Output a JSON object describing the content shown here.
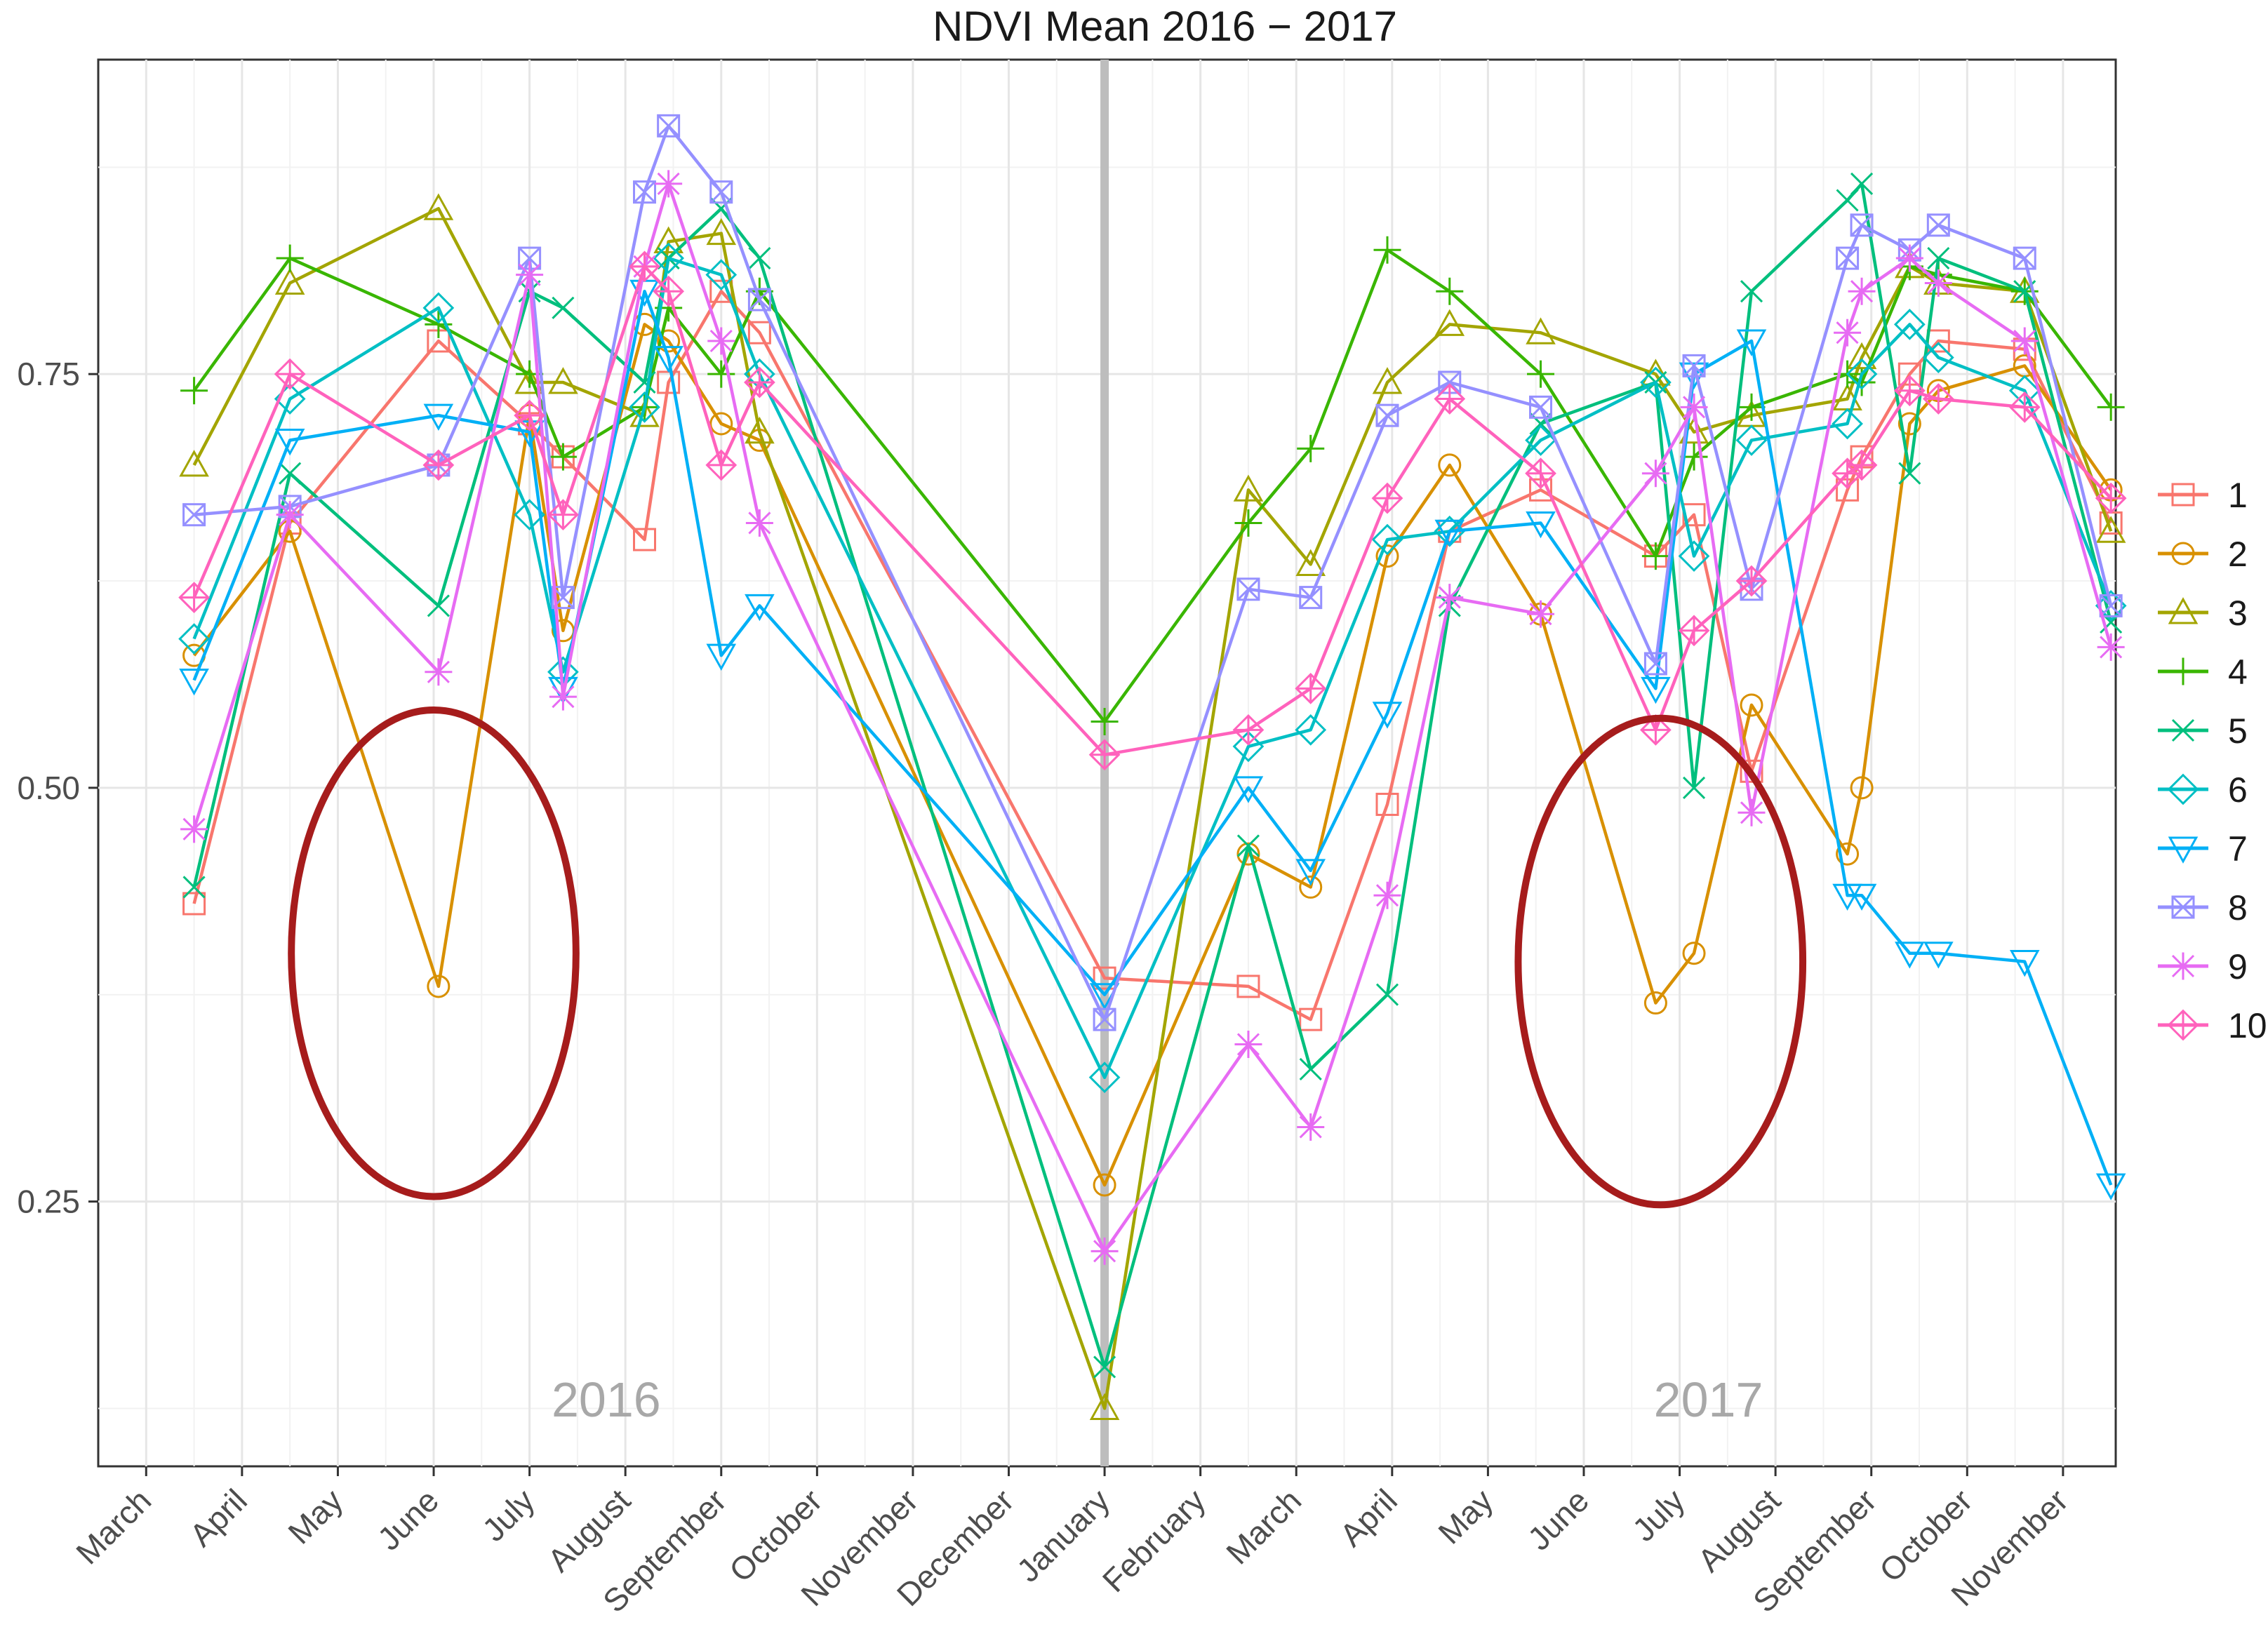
{
  "chart_data": {
    "type": "line",
    "title": "NDVI Mean 2016 − 2017",
    "xlabel": "",
    "ylabel": "",
    "ylim": [
      0.09,
      0.94
    ],
    "xlim": [
      -0.5,
      20.55
    ],
    "y_ticks": [
      {
        "value": 0.25,
        "label": "0.25"
      },
      {
        "value": 0.5,
        "label": "0.50"
      },
      {
        "value": 0.75,
        "label": "0.75"
      }
    ],
    "minor_y_gridlines": [
      0.125,
      0.375,
      0.625,
      0.875
    ],
    "x_ticks": [
      {
        "value": 0,
        "label": "March"
      },
      {
        "value": 1,
        "label": "April"
      },
      {
        "value": 2,
        "label": "May"
      },
      {
        "value": 3,
        "label": "June"
      },
      {
        "value": 4,
        "label": "July"
      },
      {
        "value": 5,
        "label": "August"
      },
      {
        "value": 6,
        "label": "September"
      },
      {
        "value": 7,
        "label": "October"
      },
      {
        "value": 8,
        "label": "November"
      },
      {
        "value": 9,
        "label": "December"
      },
      {
        "value": 10,
        "label": "January"
      },
      {
        "value": 11,
        "label": "February"
      },
      {
        "value": 12,
        "label": "March"
      },
      {
        "value": 13,
        "label": "April"
      },
      {
        "value": 14,
        "label": "May"
      },
      {
        "value": 15,
        "label": "June"
      },
      {
        "value": 16,
        "label": "July"
      },
      {
        "value": 17,
        "label": "August"
      },
      {
        "value": 18,
        "label": "September"
      },
      {
        "value": 19,
        "label": "October"
      },
      {
        "value": 20,
        "label": "November"
      }
    ],
    "separator": {
      "x": 10,
      "color": "#bdbdbd"
    },
    "year_labels": [
      {
        "x": 4.8,
        "y": 0.12,
        "text": "2016"
      },
      {
        "x": 16.3,
        "y": 0.12,
        "text": "2017"
      }
    ],
    "highlight_circles": [
      {
        "cx": 3.0,
        "cy": 0.4,
        "rx": 1.1,
        "ry": 0.06,
        "color": "#a61c1c"
      },
      {
        "cx": 15.8,
        "cy": 0.395,
        "rx": 1.1,
        "ry": 0.06,
        "color": "#a61c1c"
      }
    ],
    "legend": {
      "position": "right",
      "title": ""
    },
    "x": [
      0.5,
      1.5,
      3.05,
      4.0,
      4.35,
      5.2,
      5.45,
      6.0,
      6.4,
      10.0,
      11.5,
      12.15,
      12.95,
      13.6,
      14.55,
      15.75,
      16.15,
      16.75,
      17.75,
      17.9,
      18.4,
      18.7,
      19.6,
      20.5
    ],
    "series": [
      {
        "name": "1",
        "shape": "square",
        "color": "#f8766d",
        "values": [
          0.43,
          0.66,
          0.77,
          0.72,
          0.7,
          0.65,
          0.745,
          0.8,
          0.775,
          0.385,
          0.38,
          0.36,
          0.49,
          0.655,
          0.68,
          0.64,
          0.665,
          0.51,
          0.68,
          0.7,
          0.75,
          0.77,
          0.765,
          0.66
        ]
      },
      {
        "name": "2",
        "shape": "circle",
        "color": "#d89000",
        "values": [
          0.58,
          0.655,
          0.38,
          0.725,
          0.595,
          0.78,
          0.77,
          0.72,
          0.71,
          0.26,
          0.46,
          0.44,
          0.64,
          0.695,
          0.605,
          0.37,
          0.4,
          0.55,
          0.46,
          0.5,
          0.72,
          0.74,
          0.755,
          0.68
        ]
      },
      {
        "name": "3",
        "shape": "triangle-up",
        "color": "#a3a500",
        "values": [
          0.695,
          0.805,
          0.85,
          0.745,
          0.745,
          0.725,
          0.83,
          0.835,
          0.715,
          0.125,
          0.68,
          0.635,
          0.745,
          0.78,
          0.775,
          0.75,
          0.715,
          0.725,
          0.735,
          0.76,
          0.815,
          0.805,
          0.8,
          0.655
        ]
      },
      {
        "name": "4",
        "shape": "plus",
        "color": "#39b600",
        "values": [
          0.74,
          0.82,
          0.78,
          0.75,
          0.7,
          0.73,
          0.79,
          0.75,
          0.8,
          0.54,
          0.66,
          0.705,
          0.825,
          0.8,
          0.75,
          0.64,
          0.7,
          0.73,
          0.75,
          0.745,
          0.815,
          0.81,
          0.8,
          0.73
        ]
      },
      {
        "name": "5",
        "shape": "cross",
        "color": "#00bf7d",
        "values": [
          0.44,
          0.69,
          0.61,
          0.8,
          0.79,
          0.745,
          0.82,
          0.85,
          0.82,
          0.15,
          0.465,
          0.33,
          0.375,
          0.61,
          0.72,
          0.745,
          0.5,
          0.8,
          0.855,
          0.865,
          0.69,
          0.82,
          0.8,
          0.6
        ]
      },
      {
        "name": "6",
        "shape": "diamond",
        "color": "#00bfc4",
        "values": [
          0.59,
          0.735,
          0.79,
          0.665,
          0.57,
          0.73,
          0.82,
          0.81,
          0.75,
          0.325,
          0.525,
          0.535,
          0.65,
          0.655,
          0.71,
          0.745,
          0.64,
          0.71,
          0.72,
          0.75,
          0.78,
          0.76,
          0.74,
          0.61
        ]
      },
      {
        "name": "7",
        "shape": "triangle-down",
        "color": "#00b0f6",
        "values": [
          0.565,
          0.71,
          0.725,
          0.715,
          0.56,
          0.8,
          0.76,
          0.58,
          0.61,
          0.375,
          0.5,
          0.45,
          0.545,
          0.655,
          0.66,
          0.56,
          0.75,
          0.77,
          0.435,
          0.435,
          0.4,
          0.4,
          0.395,
          0.26
        ]
      },
      {
        "name": "8",
        "shape": "square-cross",
        "color": "#9590ff",
        "values": [
          0.665,
          0.67,
          0.695,
          0.82,
          0.615,
          0.86,
          0.9,
          0.86,
          0.795,
          0.36,
          0.62,
          0.615,
          0.725,
          0.745,
          0.73,
          0.575,
          0.755,
          0.62,
          0.82,
          0.84,
          0.825,
          0.84,
          0.82,
          0.61
        ]
      },
      {
        "name": "9",
        "shape": "asterisk",
        "color": "#e76bf3",
        "values": [
          0.475,
          0.665,
          0.57,
          0.81,
          0.555,
          0.815,
          0.865,
          0.77,
          0.66,
          0.22,
          0.345,
          0.295,
          0.435,
          0.615,
          0.605,
          0.69,
          0.73,
          0.485,
          0.775,
          0.8,
          0.82,
          0.805,
          0.77,
          0.585
        ]
      },
      {
        "name": "10",
        "shape": "diamond-plus",
        "color": "#ff62bc",
        "values": [
          0.615,
          0.75,
          0.695,
          0.725,
          0.665,
          0.815,
          0.8,
          0.695,
          0.745,
          0.52,
          0.535,
          0.56,
          0.675,
          0.735,
          0.69,
          0.535,
          0.595,
          0.625,
          0.69,
          0.695,
          0.74,
          0.735,
          0.73,
          0.675
        ]
      }
    ]
  }
}
